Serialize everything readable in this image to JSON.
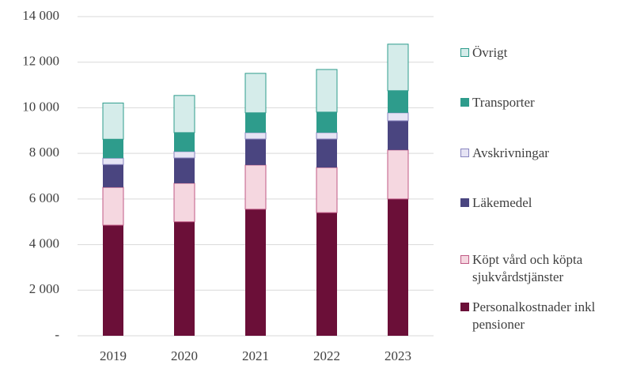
{
  "chart_data": {
    "type": "bar",
    "categories": [
      "2019",
      "2020",
      "2021",
      "2022",
      "2023"
    ],
    "series": [
      {
        "name": "Personalkostnader inkl pensioner",
        "color": "#6b0f38",
        "values": [
          4850,
          5000,
          5550,
          5400,
          6000
        ]
      },
      {
        "name": "Köpt vård och köpta sjukvårdstjänster",
        "color": "#f5d7e0",
        "values": [
          1660,
          1690,
          1940,
          1980,
          2150
        ]
      },
      {
        "name": "Läkemedel",
        "color": "#4a4580",
        "values": [
          1000,
          1110,
          1140,
          1250,
          1280
        ]
      },
      {
        "name": "Avskrivningar",
        "color": "#e6e4f4",
        "values": [
          280,
          280,
          280,
          280,
          350
        ]
      },
      {
        "name": "Transporter",
        "color": "#2e9c8c",
        "values": [
          830,
          830,
          870,
          900,
          970
        ]
      },
      {
        "name": "Övrigt",
        "color": "#d5ecea",
        "values": [
          1590,
          1630,
          1730,
          1870,
          2040
        ]
      }
    ],
    "ylim": [
      0,
      14000
    ],
    "yticks": [
      {
        "value": 0,
        "label": "-"
      },
      {
        "value": 2000,
        "label": "2 000"
      },
      {
        "value": 4000,
        "label": "4 000"
      },
      {
        "value": 6000,
        "label": "6 000"
      },
      {
        "value": 8000,
        "label": "8 000"
      },
      {
        "value": 10000,
        "label": "10 000"
      },
      {
        "value": 12000,
        "label": "12 000"
      },
      {
        "value": 14000,
        "label": "14 000"
      }
    ],
    "grid": true,
    "stacked": true,
    "legend": "right"
  }
}
